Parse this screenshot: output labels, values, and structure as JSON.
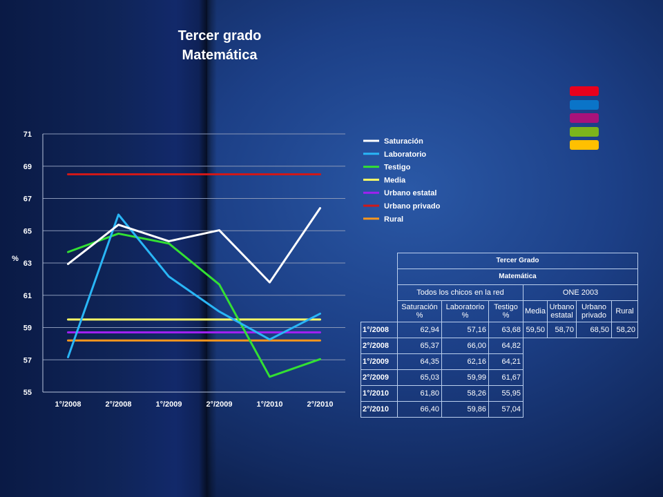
{
  "title_line1": "Tercer grado",
  "title_line2": "Matemática",
  "chart_data": {
    "type": "line",
    "categories": [
      "1°/2008",
      "2°/2008",
      "1°/2009",
      "2°/2009",
      "1°/2010",
      "2°/2010"
    ],
    "ylim": [
      55,
      71
    ],
    "yticks": [
      55,
      57,
      59,
      61,
      63,
      65,
      67,
      69,
      71
    ],
    "ylabel": "%",
    "grid": true,
    "legend_position": "right",
    "series": [
      {
        "name": "Saturación",
        "color": "#ffffff",
        "values": [
          62.94,
          65.37,
          64.35,
          65.03,
          61.8,
          66.4
        ]
      },
      {
        "name": "Laboratorio",
        "color": "#29b6f6",
        "values": [
          57.16,
          66.0,
          62.16,
          59.99,
          58.26,
          59.86
        ]
      },
      {
        "name": "Testigo",
        "color": "#33e033",
        "values": [
          63.68,
          64.82,
          64.21,
          61.67,
          55.95,
          57.04
        ]
      },
      {
        "name": "Media",
        "color": "#ffff66",
        "values": [
          59.5,
          59.5,
          59.5,
          59.5,
          59.5,
          59.5
        ]
      },
      {
        "name": "Urbano estatal",
        "color": "#a020f0",
        "values": [
          58.7,
          58.7,
          58.7,
          58.7,
          58.7,
          58.7
        ]
      },
      {
        "name": "Urbano privado",
        "color": "#d01818",
        "values": [
          68.5,
          68.5,
          68.5,
          68.5,
          68.5,
          68.5
        ]
      },
      {
        "name": "Rural",
        "color": "#f5961e",
        "values": [
          58.2,
          58.2,
          58.2,
          58.2,
          58.2,
          58.2
        ]
      }
    ]
  },
  "swatches": [
    "#e8001c",
    "#0a74c8",
    "#a8127a",
    "#7cb51c",
    "#ffc000"
  ],
  "table": {
    "title": "Tercer Grado",
    "subject": "Matemática",
    "group1": "Todos los chicos en la red",
    "group2": "ONE 2003",
    "col_saturacion": "Saturación %",
    "col_laboratorio": "Laboratorio %",
    "col_testigo": "Testigo %",
    "col_media": "Media",
    "col_urbano_estatal": "Urbano estatal",
    "col_urbano_privado": "Urbano privado",
    "col_rural": "Rural",
    "rows": [
      {
        "label": "1°/2008",
        "saturacion": "62,94",
        "laboratorio": "57,16",
        "testigo": "63,68",
        "media": "59,50",
        "urbano_estatal": "58,70",
        "urbano_privado": "68,50",
        "rural": "58,20"
      },
      {
        "label": "2°/2008",
        "saturacion": "65,37",
        "laboratorio": "66,00",
        "testigo": "64,82"
      },
      {
        "label": "1°/2009",
        "saturacion": "64,35",
        "laboratorio": "62,16",
        "testigo": "64,21"
      },
      {
        "label": "2°/2009",
        "saturacion": "65,03",
        "laboratorio": "59,99",
        "testigo": "61,67"
      },
      {
        "label": "1°/2010",
        "saturacion": "61,80",
        "laboratorio": "58,26",
        "testigo": "55,95"
      },
      {
        "label": "2°/2010",
        "saturacion": "66,40",
        "laboratorio": "59,86",
        "testigo": "57,04"
      }
    ]
  }
}
